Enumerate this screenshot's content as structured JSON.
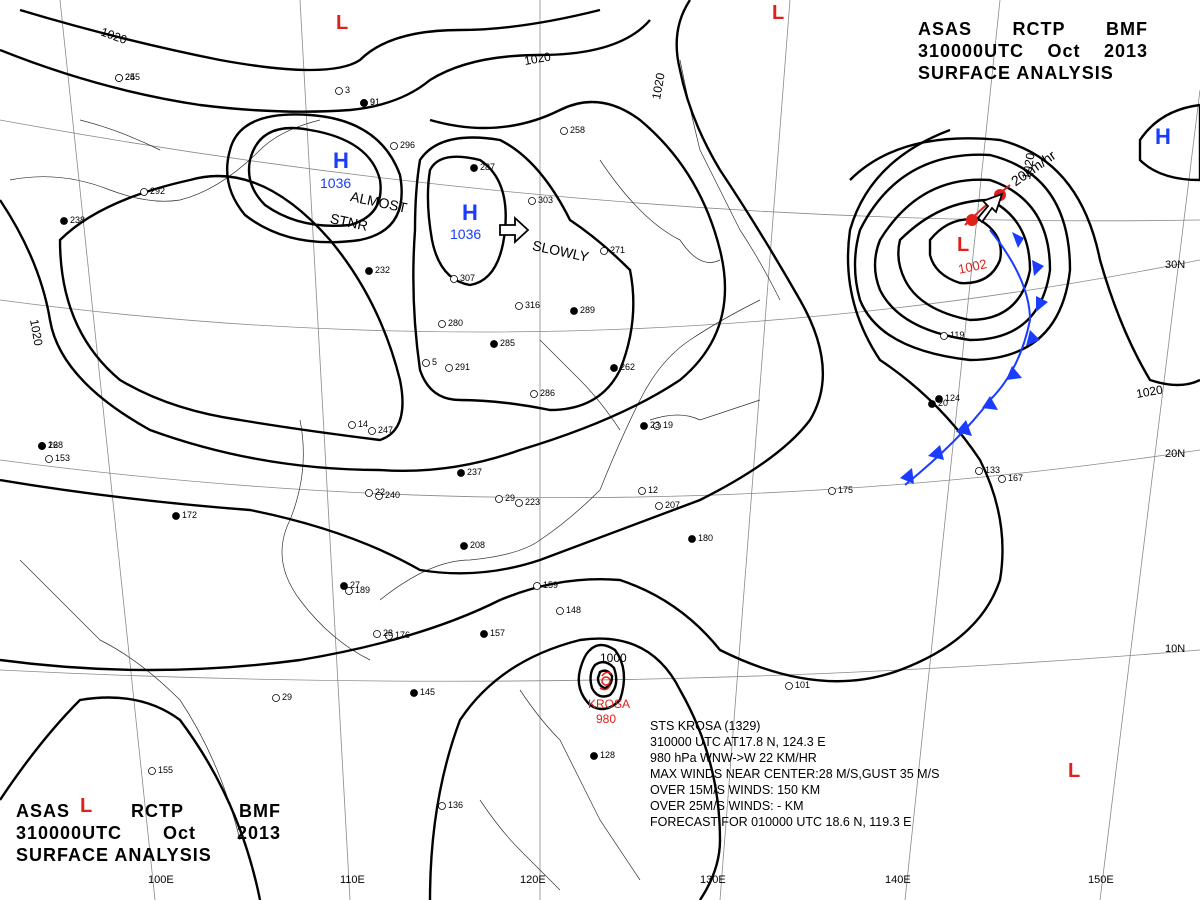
{
  "header_top": {
    "line1": [
      "ASAS",
      "RCTP",
      "BMF"
    ],
    "line2": [
      "310000UTC",
      "Oct",
      "2013"
    ],
    "line3": "SURFACE ANALYSIS"
  },
  "header_bottom": {
    "line1": [
      "ASAS",
      "RCTP",
      "BMF"
    ],
    "line2": [
      "310000UTC",
      "Oct",
      "2013"
    ],
    "line3": "SURFACE ANALYSIS"
  },
  "longitude_labels": [
    "110E",
    "120E",
    "130E",
    "140E",
    "150E",
    "100E"
  ],
  "latitude_labels": [
    "30N",
    "20N",
    "10N"
  ],
  "isobar_labels": [
    "1020",
    "1020",
    "1020",
    "1020",
    "1020",
    "1020",
    "1000"
  ],
  "pressure_centers": {
    "high_west": {
      "letter": "H",
      "value": "1036"
    },
    "high_east": {
      "letter": "H",
      "value": "1036"
    },
    "high_pacific": {
      "letter": "H"
    },
    "low_northeast": {
      "letter": "L",
      "value": "1002"
    },
    "low_labels": [
      "L",
      "L",
      "L",
      "L"
    ]
  },
  "motion_labels": {
    "almost_stationary": [
      "ALMOST",
      "STNR"
    ],
    "slowly": "SLOWLY",
    "speed": "20km/hr"
  },
  "typhoon": {
    "name": "KROSA",
    "pressure": "980",
    "outer_isobar": "1000",
    "info": [
      "STS  KROSA  (1329)",
      "310000 UTC  AT17.8 N, 124.3 E",
      "980 hPa  WNW->W  22 KM/HR",
      "MAX WINDS NEAR CENTER:28 M/S,GUST 35 M/S",
      "OVER 15M/S WINDS: 150 KM",
      "OVER 25M/S WINDS: - KM",
      "FORECAST FOR 010000 UTC 18.6 N, 119.3 E"
    ]
  },
  "station_values": [
    "245",
    "91",
    "292",
    "238",
    "3",
    "296",
    "287",
    "258",
    "303",
    "232",
    "307",
    "271",
    "289",
    "316",
    "280",
    "285",
    "291",
    "286",
    "262",
    "247",
    "14",
    "237",
    "240",
    "223",
    "208",
    "175",
    "207",
    "180",
    "22",
    "153",
    "172",
    "189",
    "176",
    "157",
    "148",
    "159",
    "27",
    "28",
    "29",
    "145",
    "155",
    "136",
    "128",
    "101",
    "119",
    "124",
    "133",
    "167",
    "168",
    "29",
    "22",
    "23",
    "12",
    "19",
    "20",
    "5",
    "25",
    "9"
  ],
  "colors": {
    "high": "#1a3cff",
    "low": "#e0201b",
    "cold_front": "#1a3cff",
    "warm_front": "#e0201b",
    "isobar": "#000000",
    "grid": "#888888"
  }
}
